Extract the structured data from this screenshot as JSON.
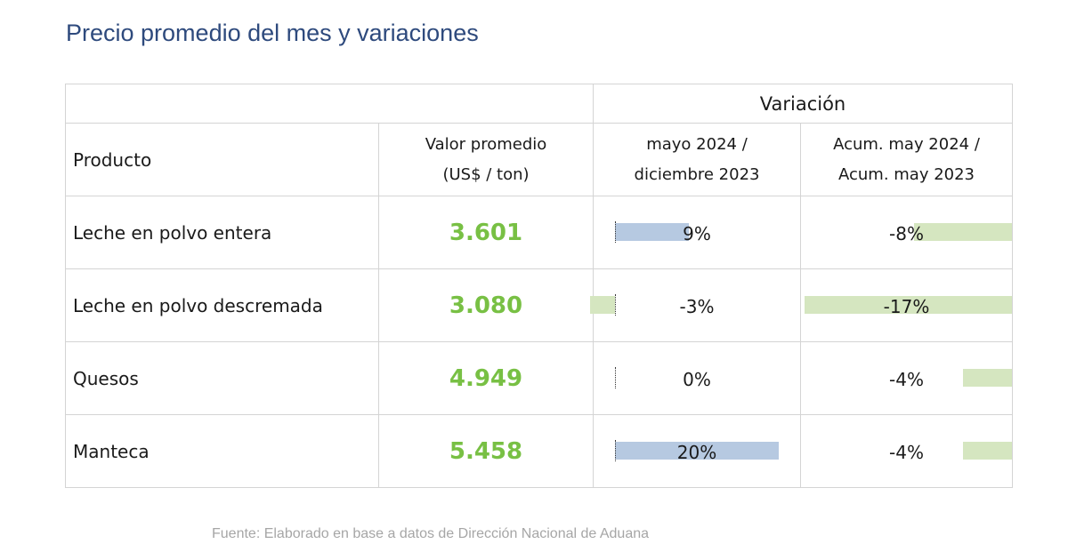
{
  "title": "Precio promedio del mes y variaciones",
  "header": {
    "variacion": "Variación",
    "producto": "Producto",
    "valor_line1": "Valor promedio",
    "valor_line2": "(US$ / ton)",
    "mes_line1": "mayo 2024 /",
    "mes_line2": "diciembre 2023",
    "acum_line1": "Acum. may 2024 /",
    "acum_line2": "Acum. may 2023"
  },
  "source": "Fuente: Elaborado en base a datos de Dirección Nacional de Aduana",
  "colors": {
    "value_green": "#78c044",
    "positive_bar": "#b6c9e1",
    "negative_bar": "#d5e6c0",
    "title": "#2e4a7d"
  },
  "chart_data": {
    "type": "table",
    "columns": [
      "Producto",
      "Valor promedio (US$ / ton)",
      "mayo 2024 / diciembre 2023",
      "Acum. may 2024 / Acum. may 2023"
    ],
    "rows": [
      {
        "producto": "Leche en polvo entera",
        "valor": "3.601",
        "var_mes": 9,
        "var_mes_label": "9%",
        "var_acum": -8,
        "var_acum_label": "-8%"
      },
      {
        "producto": "Leche en polvo descremada",
        "valor": "3.080",
        "var_mes": -3,
        "var_mes_label": "-3%",
        "var_acum": -17,
        "var_acum_label": "-17%"
      },
      {
        "producto": "Quesos",
        "valor": "4.949",
        "var_mes": 0,
        "var_mes_label": "0%",
        "var_acum": -4,
        "var_acum_label": "-4%"
      },
      {
        "producto": "Manteca",
        "valor": "5.458",
        "var_mes": 20,
        "var_mes_label": "20%",
        "var_acum": -4,
        "var_acum_label": "-4%"
      }
    ]
  }
}
